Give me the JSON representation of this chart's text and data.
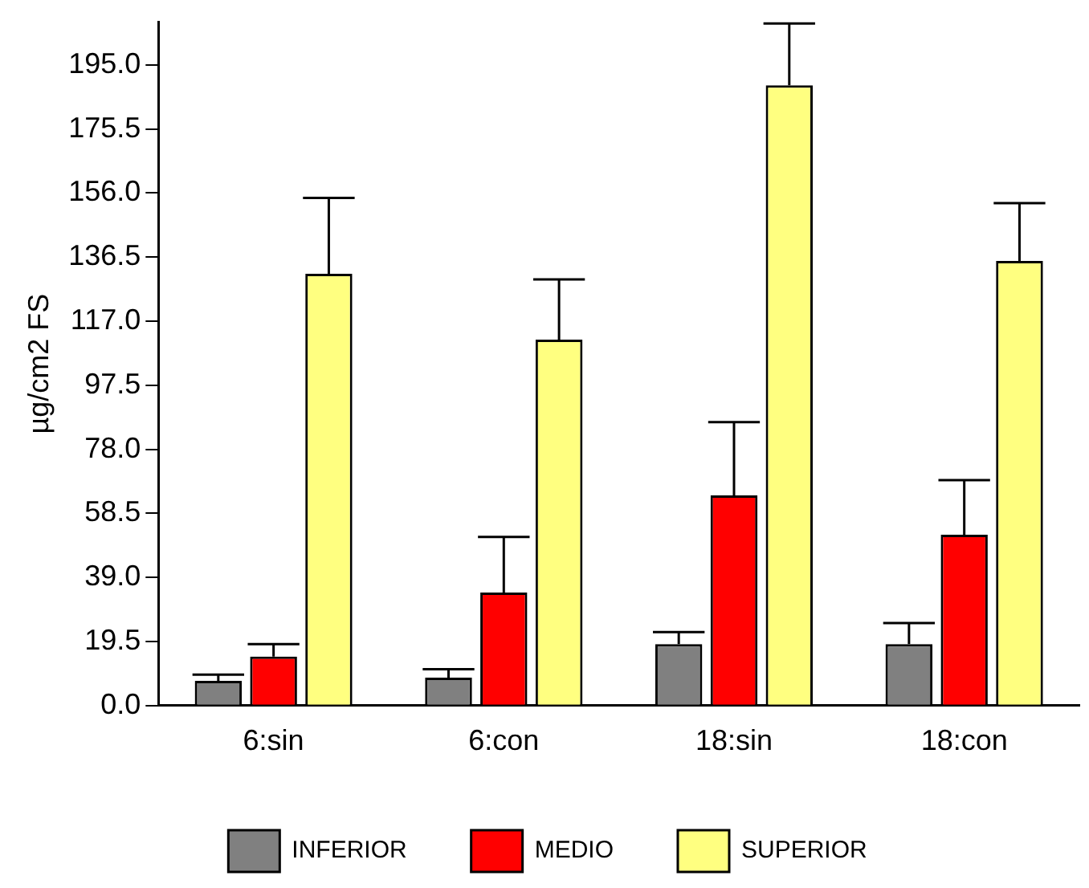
{
  "chart_data": {
    "type": "bar",
    "ylabel": "µg/cm2 FS",
    "categories": [
      "6:sin",
      "6:con",
      "18:sin",
      "18:con"
    ],
    "series": [
      {
        "name": "INFERIOR",
        "color": "#808080",
        "values": [
          7.5,
          8.5,
          18.7,
          18.7
        ],
        "errors": [
          [
            7.5,
            9.4
          ],
          [
            8.5,
            11.1
          ],
          [
            18.7,
            22.4
          ],
          [
            18.7,
            25.1
          ]
        ]
      },
      {
        "name": "MEDIO",
        "color": "#ff0000",
        "values": [
          14.9,
          34.4,
          64.0,
          52.0
        ],
        "errors": [
          [
            14.9,
            18.7
          ],
          [
            34.4,
            51.3
          ],
          [
            64.0,
            86.3
          ],
          [
            52.0,
            68.6
          ]
        ]
      },
      {
        "name": "SUPERIOR",
        "color": "#ffff80",
        "values": [
          131.4,
          111.4,
          188.8,
          135.3
        ],
        "errors": [
          [
            131.4,
            154.5
          ],
          [
            111.4,
            129.7
          ],
          [
            188.8,
            207.6
          ],
          [
            135.3,
            152.9
          ]
        ]
      }
    ],
    "ylim": [
      0,
      208
    ],
    "yticks": [
      {
        "value": 0,
        "label": "0.0"
      },
      {
        "value": 19.5,
        "label": "19.5"
      },
      {
        "value": 39,
        "label": "39.0"
      },
      {
        "value": 58.5,
        "label": "58.5"
      },
      {
        "value": 78,
        "label": "78.0"
      },
      {
        "value": 97.5,
        "label": "97.5"
      },
      {
        "value": 117,
        "label": "117.0"
      },
      {
        "value": 136.5,
        "label": "136.5"
      },
      {
        "value": 156,
        "label": "156.0"
      },
      {
        "value": 175.5,
        "label": "175.5"
      },
      {
        "value": 195,
        "label": "195.0"
      }
    ],
    "grid": false,
    "legend": "bottom"
  }
}
